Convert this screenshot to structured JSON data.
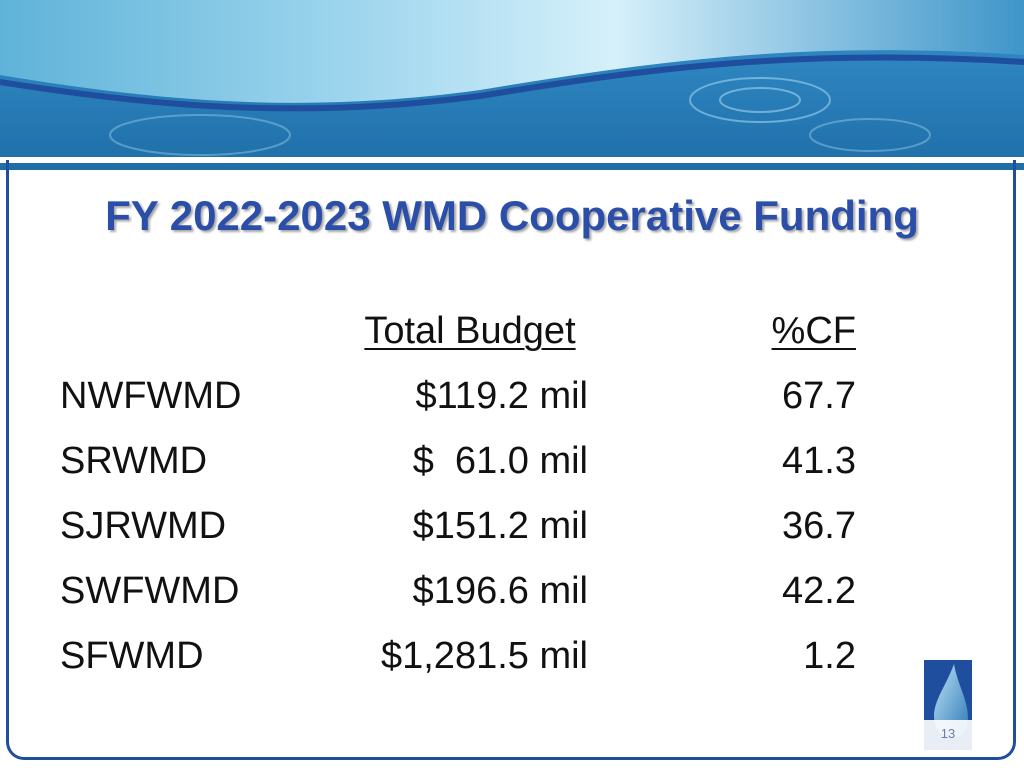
{
  "slide": {
    "title": "FY 2022-2023 WMD Cooperative Funding",
    "page_number": "13"
  },
  "table": {
    "headers": {
      "budget": "Total Budget",
      "cf": "%CF"
    },
    "rows": [
      {
        "district": "NWFWMD",
        "budget": "$119.2 mil",
        "cf": "67.7"
      },
      {
        "district": "SRWMD",
        "budget": "$  61.0 mil",
        "cf": "41.3"
      },
      {
        "district": "SJRWMD",
        "budget": "$151.2 mil",
        "cf": "36.7"
      },
      {
        "district": "SWFWMD",
        "budget": "$196.6 mil",
        "cf": "42.2"
      },
      {
        "district": "SFWMD",
        "budget": "$1,281.5 mil",
        "cf": "1.2"
      }
    ]
  },
  "colors": {
    "title": "#2b4fa8",
    "frame": "#1f4e9e",
    "water_light": "#bfe6f5",
    "water_dark": "#2f87c2"
  }
}
